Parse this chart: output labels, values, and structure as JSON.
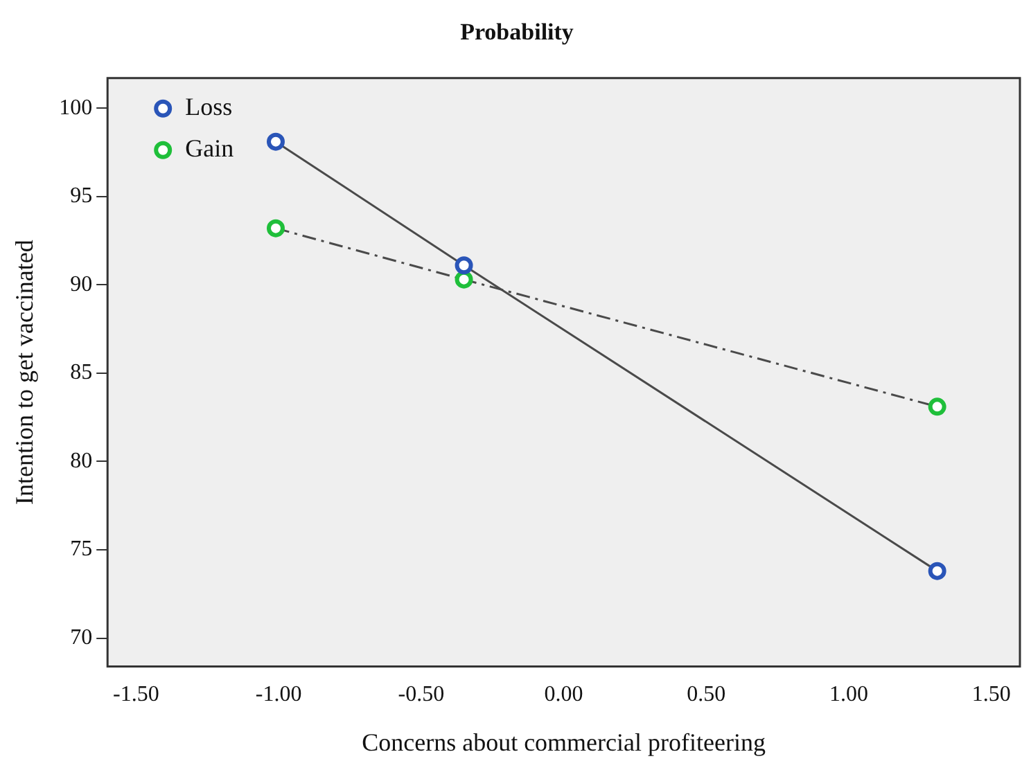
{
  "chart_data": {
    "type": "line",
    "title": "Probability",
    "xlabel": "Concerns about commercial profiteering",
    "ylabel": "Intention to get vaccinated",
    "x": [
      -1.01,
      -0.35,
      1.31
    ],
    "series": [
      {
        "name": "Loss",
        "color": "#2a55b8",
        "values": [
          98.1,
          91.1,
          73.8
        ],
        "line_style": "solid"
      },
      {
        "name": "Gain",
        "color": "#1fbf3a",
        "values": [
          93.2,
          90.3,
          83.1
        ],
        "line_style": "dashed"
      }
    ],
    "xlim": [
      -1.6,
      1.6
    ],
    "xticks": [
      {
        "value": -1.5,
        "label": "-1.50"
      },
      {
        "value": -1,
        "label": "-1.00"
      },
      {
        "value": -0.5,
        "label": "-0.50"
      },
      {
        "value": 0,
        "label": "0.00"
      },
      {
        "value": 0.5,
        "label": "0.50"
      },
      {
        "value": 1,
        "label": "1.00"
      },
      {
        "value": 1.5,
        "label": "1.50"
      }
    ],
    "ylim": [
      68.4,
      101.7
    ],
    "yticks": [
      70,
      75,
      80,
      85,
      90,
      95,
      100
    ],
    "grid": false,
    "legend": "top left",
    "marker": "circle"
  }
}
